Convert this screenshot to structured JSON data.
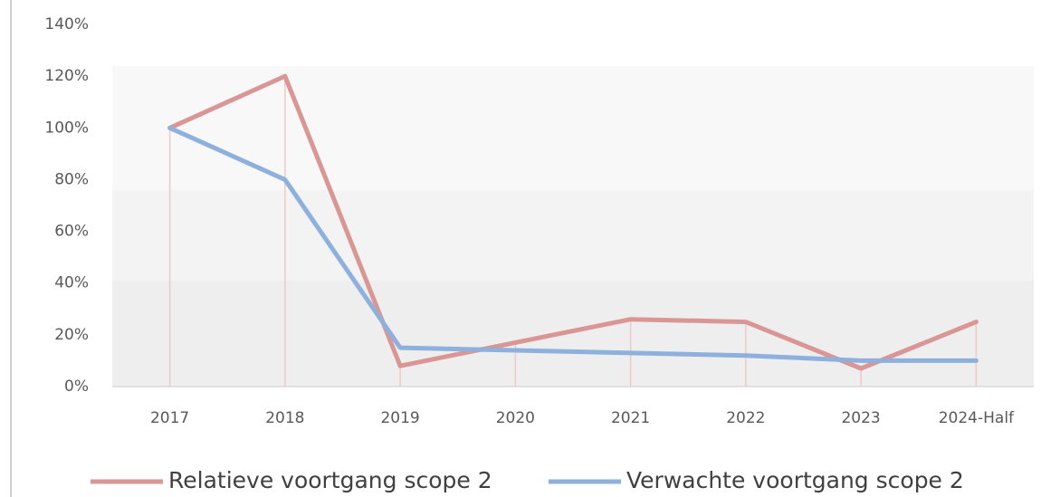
{
  "chart_data": {
    "type": "line",
    "categories": [
      "2017",
      "2018",
      "2019",
      "2020",
      "2021",
      "2022",
      "2023",
      "2024-Half"
    ],
    "series": [
      {
        "name": "Relatieve voortgang scope 2",
        "color": "#d99694",
        "values": [
          100,
          120,
          8,
          17,
          26,
          25,
          7,
          25
        ]
      },
      {
        "name": "Verwachte voortgang scope 2",
        "color": "#8eb0dc",
        "values": [
          100,
          80,
          15,
          14,
          13,
          12,
          10,
          10
        ]
      }
    ],
    "ylim": [
      0,
      140
    ],
    "yticks": [
      {
        "value": 0,
        "label": "0%"
      },
      {
        "value": 20,
        "label": "20%"
      },
      {
        "value": 40,
        "label": "40%"
      },
      {
        "value": 60,
        "label": "60%"
      },
      {
        "value": 80,
        "label": "80%"
      },
      {
        "value": 100,
        "label": "100%"
      },
      {
        "value": 120,
        "label": "120%"
      },
      {
        "value": 140,
        "label": "140%"
      }
    ],
    "legend": "bottom"
  }
}
